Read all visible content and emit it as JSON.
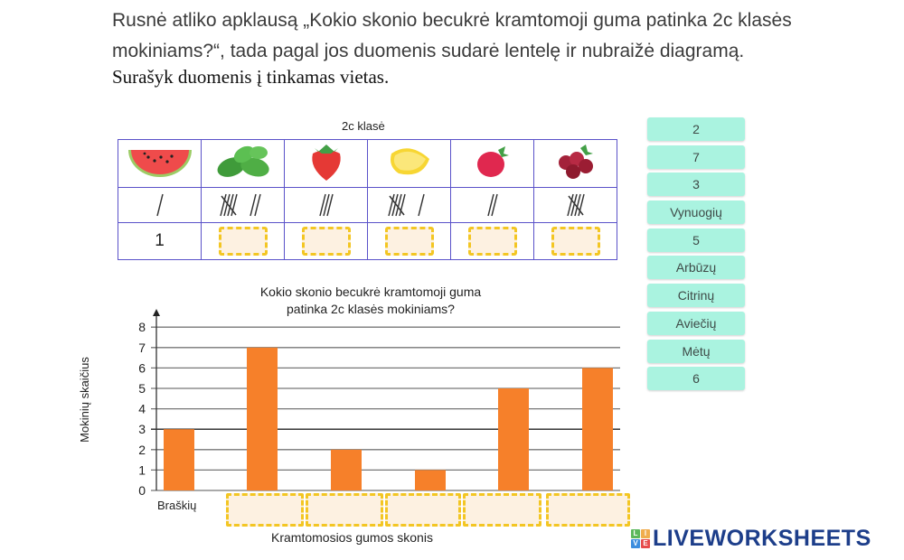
{
  "intro": {
    "text": "Rusnė atliko apklausą „Kokio skonio becukrė kramtomoji guma patinka 2c klasės mokiniams?“, tada pagal jos duomenis sudarė lentelę ir nubraižė diagramą.",
    "instruction": "Surašyk duomenis į tinkamas vietas."
  },
  "table": {
    "title": "2c klasė",
    "columns": [
      {
        "fruit": "watermelon-icon",
        "tally": 1,
        "count": "1",
        "answer_blank": false
      },
      {
        "fruit": "mint-icon",
        "tally": 7,
        "count": "",
        "answer_blank": true
      },
      {
        "fruit": "strawberry-icon",
        "tally": 3,
        "count": "",
        "answer_blank": true
      },
      {
        "fruit": "lemon-icon",
        "tally": 6,
        "count": "",
        "answer_blank": true
      },
      {
        "fruit": "raspberry-icon",
        "tally": 2,
        "count": "",
        "answer_blank": true
      },
      {
        "fruit": "grapes-icon",
        "tally": 5,
        "count": "",
        "answer_blank": true
      }
    ]
  },
  "word_bank": [
    "2",
    "7",
    "3",
    "Vynuogių",
    "5",
    "Arbūzų",
    "Citrinų",
    "Aviečių",
    "Mėtų",
    "6"
  ],
  "chart_data": {
    "type": "bar",
    "title": "Kokio skonio becukrė kramtomoji guma patinka 2c klasės mokiniams?",
    "title_line1": "Kokio skonio becukrė kramtomoji guma",
    "title_line2": "patinka 2c klasės mokiniams?",
    "xlabel": "Kramtomosios gumos skonis",
    "ylabel": "Mokinių skaičius",
    "categories": [
      "Braškių",
      "",
      "",
      "",
      "",
      ""
    ],
    "values": [
      3,
      7,
      2,
      1,
      5,
      6
    ],
    "yticks": [
      0,
      1,
      2,
      3,
      4,
      5,
      6,
      7,
      8
    ],
    "ylim": [
      0,
      8
    ],
    "grid": true,
    "bar_color": "#f6802a"
  },
  "branding": {
    "logo_text": "LIVEWORKSHEETS",
    "logo_letters": [
      "L",
      "I",
      "V",
      "E"
    ]
  },
  "colors": {
    "table_border": "#5a52c9",
    "dropzone_border": "#f3c623",
    "dropzone_fill": "#fdf1e1",
    "chip_bg": "#aaf3e0",
    "brand": "#1d3e8a"
  }
}
